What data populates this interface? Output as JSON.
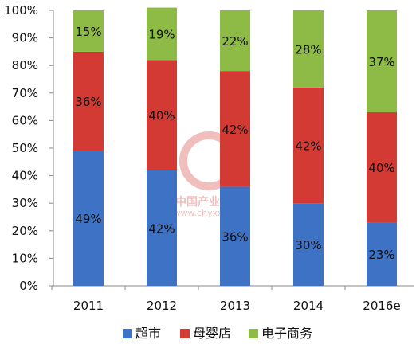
{
  "chart_data": {
    "type": "bar",
    "stacked": true,
    "categories": [
      "2011",
      "2012",
      "2013",
      "2014",
      "2016e"
    ],
    "series": [
      {
        "name": "超市",
        "color": "#3E72C5",
        "values": [
          49,
          42,
          36,
          30,
          23
        ]
      },
      {
        "name": "母婴店",
        "color": "#D33A34",
        "values": [
          36,
          40,
          42,
          42,
          40
        ]
      },
      {
        "name": "电子商务",
        "color": "#8DBB46",
        "values": [
          15,
          19,
          22,
          28,
          37
        ]
      }
    ],
    "value_labels": [
      [
        "49%",
        "42%",
        "36%",
        "30%",
        "23%"
      ],
      [
        "36%",
        "40%",
        "42%",
        "42%",
        "40%"
      ],
      [
        "15%",
        "19%",
        "22%",
        "28%",
        "37%"
      ]
    ],
    "y_ticks": [
      "0%",
      "10%",
      "20%",
      "30%",
      "40%",
      "50%",
      "60%",
      "70%",
      "80%",
      "90%",
      "100%"
    ],
    "ylim": [
      0,
      100
    ],
    "grid": false,
    "legend_position": "bottom"
  },
  "watermark": {
    "text_cn": "中国产业信息",
    "text_url": "www.chyxx.com"
  }
}
